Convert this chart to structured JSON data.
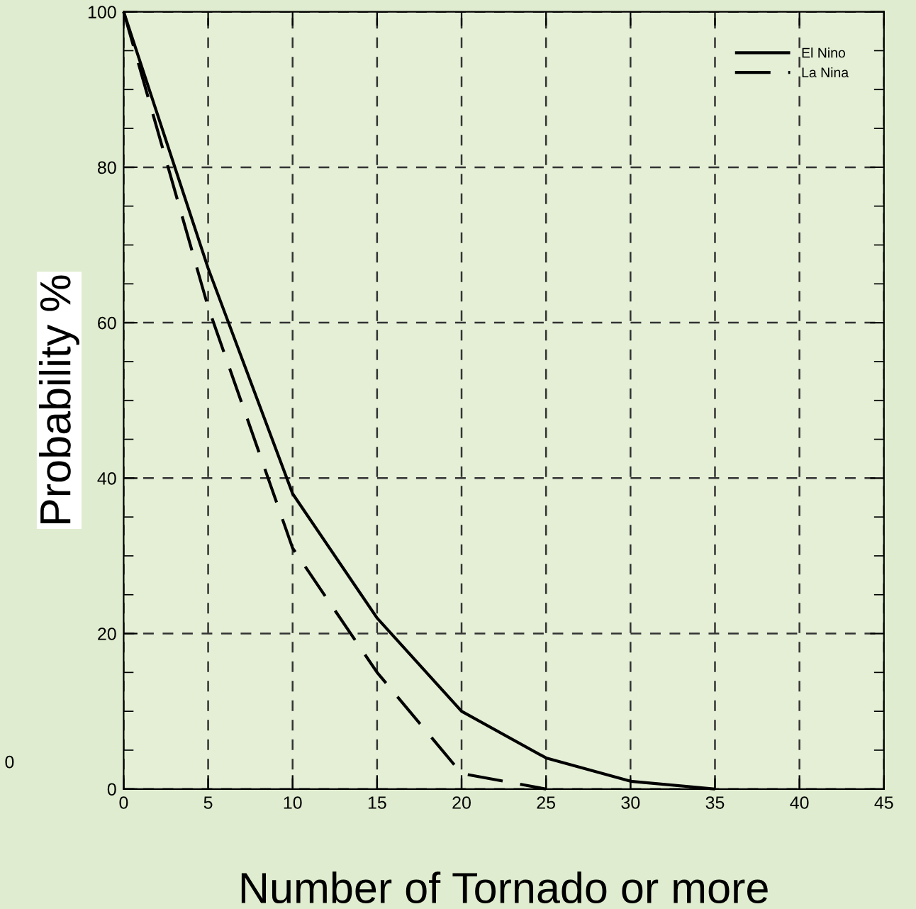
{
  "chart_data": {
    "type": "line",
    "xlabel": "Number of Tornado or more",
    "ylabel": "Probability %",
    "series": [
      {
        "name": "El Nino",
        "color": "#000000",
        "line_style": "solid",
        "x": [
          0,
          5,
          10,
          15,
          20,
          25,
          30,
          35
        ],
        "values": [
          100,
          67,
          38,
          22,
          10,
          4,
          1,
          0
        ]
      },
      {
        "name": "La Nina",
        "color": "#000000",
        "line_style": "dashed",
        "x": [
          0,
          5,
          10,
          15,
          20,
          25
        ],
        "values": [
          100,
          62,
          31,
          15,
          2,
          0
        ]
      }
    ],
    "xlim": [
      0,
      45
    ],
    "xticks": [
      0,
      5,
      10,
      15,
      20,
      25,
      30,
      35,
      40,
      45
    ],
    "ylim": [
      0,
      100
    ],
    "yticks": [
      0,
      20,
      40,
      60,
      80,
      100
    ],
    "grid": true,
    "legend": "top right",
    "marker": "none",
    "annotations": [
      "0"
    ]
  }
}
